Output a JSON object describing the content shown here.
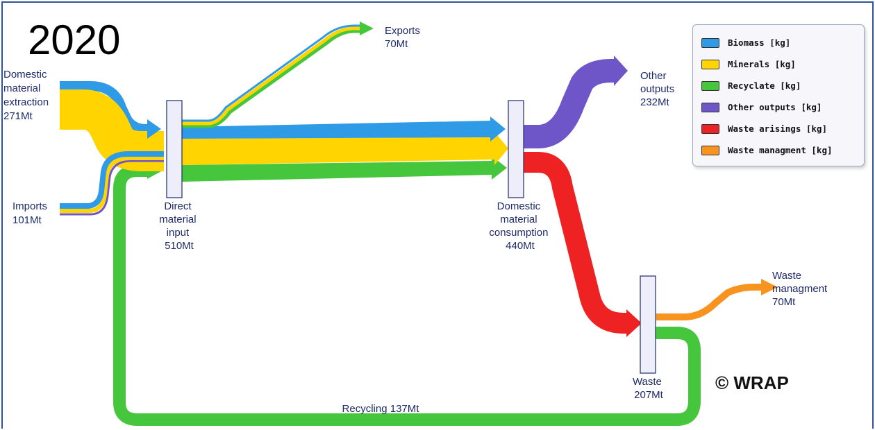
{
  "header": {
    "year": "2020",
    "copyright": "© WRAP"
  },
  "colors": {
    "biomass": "#2f9ae6",
    "minerals": "#ffd400",
    "recyclate": "#46c63c",
    "other_outputs": "#6e56c8",
    "waste_arisings": "#ee2222",
    "waste_management": "#f7931e"
  },
  "legend": {
    "items": [
      {
        "label": "Biomass [kg]",
        "color": "#2f9ae6"
      },
      {
        "label": "Minerals [kg]",
        "color": "#ffd400"
      },
      {
        "label": "Recyclate [kg]",
        "color": "#46c63c"
      },
      {
        "label": "Other outputs [kg]",
        "color": "#6e56c8"
      },
      {
        "label": "Waste arisings [kg]",
        "color": "#ee2222"
      },
      {
        "label": "Waste managment [kg]",
        "color": "#f7931e"
      }
    ]
  },
  "nodes": {
    "domestic_extraction": {
      "lines": [
        "Domestic",
        "material",
        "extraction",
        "271Mt"
      ]
    },
    "imports": {
      "lines": [
        "Imports",
        "101Mt"
      ]
    },
    "direct_input": {
      "lines": [
        "Direct",
        "material",
        "input",
        "510Mt"
      ]
    },
    "exports": {
      "lines": [
        "Exports",
        "70Mt"
      ]
    },
    "domestic_consumption": {
      "lines": [
        "Domestic",
        "material",
        "consumption",
        "440Mt"
      ]
    },
    "other_outputs": {
      "lines": [
        "Other",
        "outputs",
        "232Mt"
      ]
    },
    "waste": {
      "lines": [
        "Waste",
        "207Mt"
      ]
    },
    "waste_management": {
      "lines": [
        "Waste",
        "managment",
        "70Mt"
      ]
    },
    "recycling": {
      "label": "Recycling 137Mt"
    }
  }
}
